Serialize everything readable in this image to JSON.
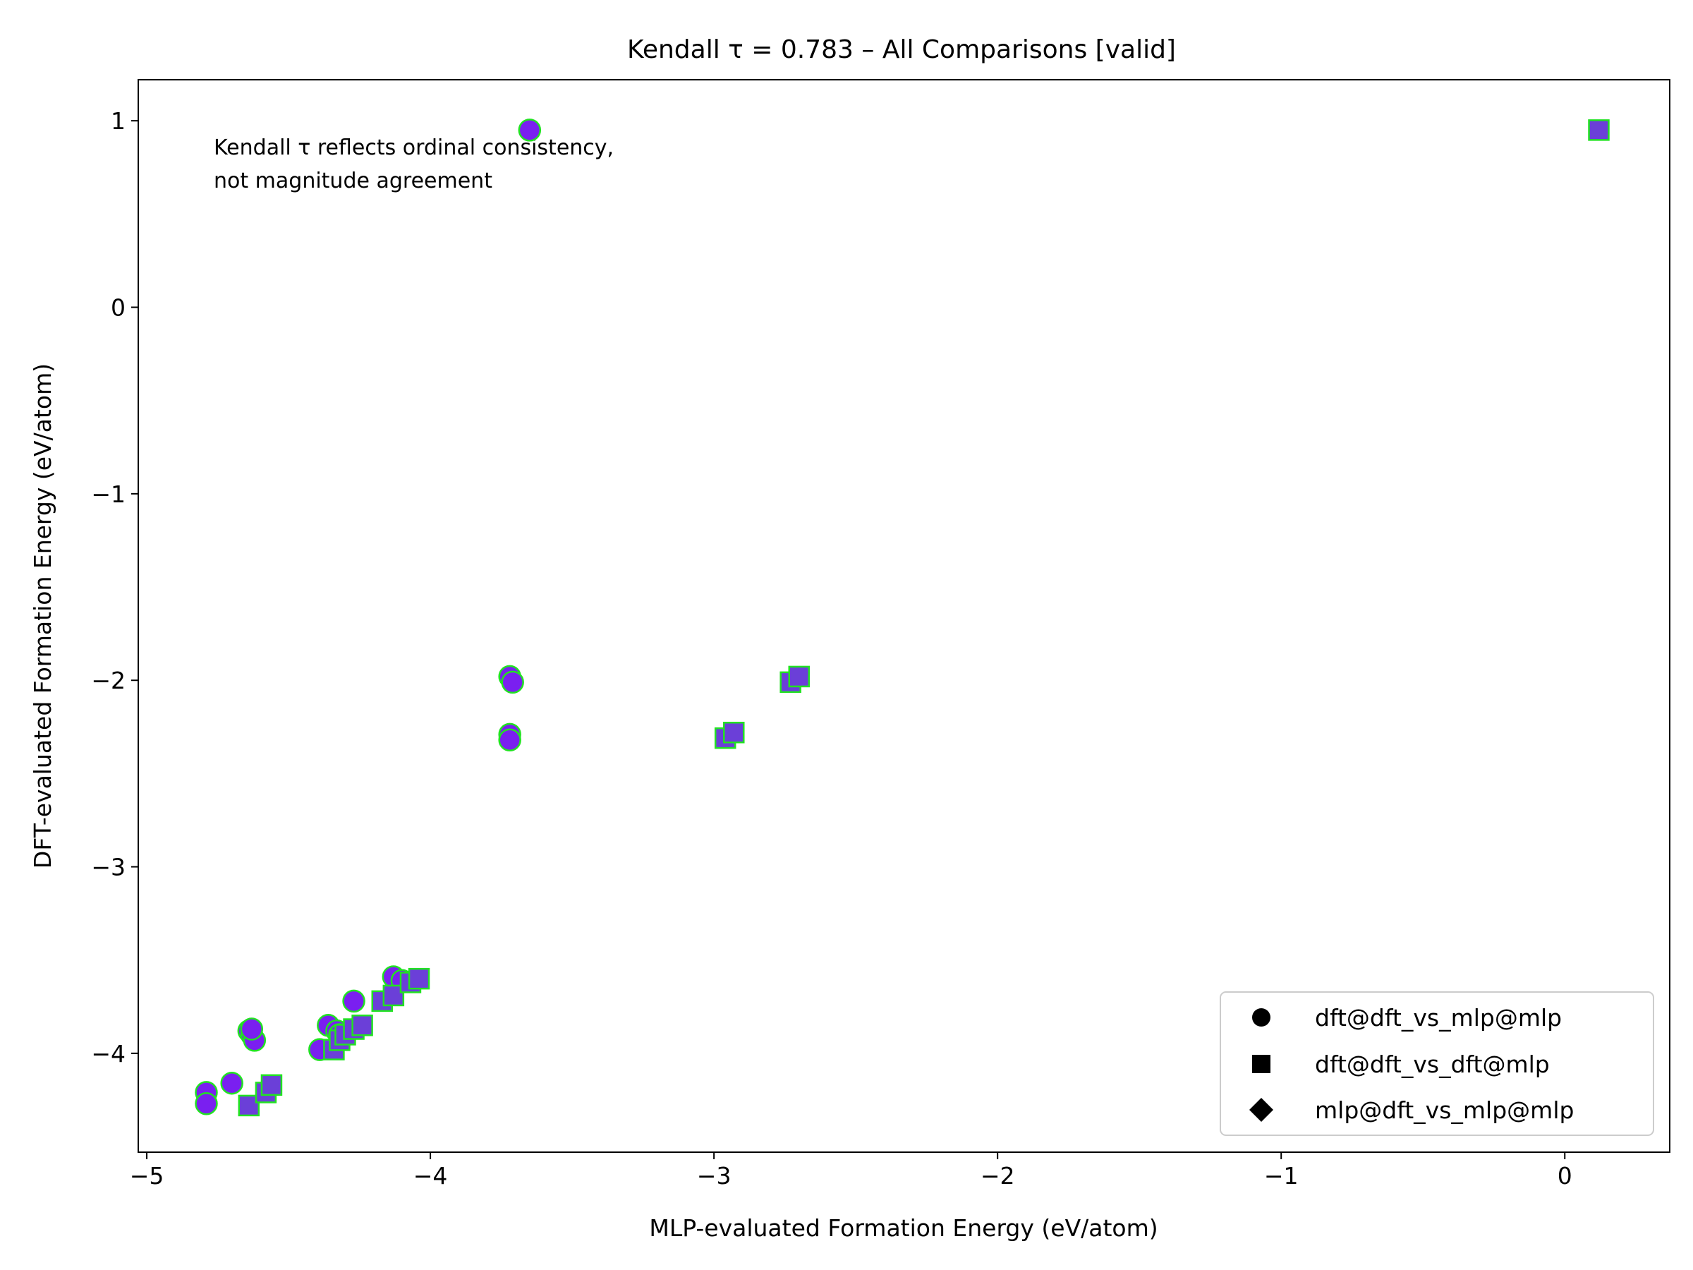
{
  "chart_data": {
    "type": "scatter",
    "title": "Kendall τ = 0.783 – All Comparisons [valid]",
    "xlabel": "MLP-evaluated Formation Energy (eV/atom)",
    "ylabel": "DFT-evaluated Formation Energy (eV/atom)",
    "annotation": [
      "Kendall τ reflects ordinal consistency,",
      "not magnitude agreement"
    ],
    "xlim": [
      -5.03,
      0.37
    ],
    "ylim": [
      -4.53,
      1.22
    ],
    "xticks": [
      -5,
      -4,
      -3,
      -2,
      -1,
      0
    ],
    "yticks": [
      -4,
      -3,
      -2,
      -1,
      0,
      1
    ],
    "xtick_labels": [
      "−5",
      "−4",
      "−3",
      "−2",
      "−1",
      "0"
    ],
    "ytick_labels": [
      "−4",
      "−3",
      "−2",
      "−1",
      "0",
      "1"
    ],
    "grid": false,
    "legend_position": "bottom-right",
    "colors": {
      "marker_fill": "#7a1ff0",
      "square_fill": "#6b3fd8",
      "outer_fill": "#8b2a40",
      "edge": "#22e222"
    },
    "series": [
      {
        "name": "dft@dft_vs_mlp@mlp",
        "marker": "circle",
        "points": [
          [
            -4.79,
            -4.21
          ],
          [
            -4.79,
            -4.27
          ],
          [
            -4.7,
            -4.16
          ],
          [
            -4.64,
            -3.88
          ],
          [
            -4.63,
            -3.9
          ],
          [
            -4.62,
            -3.93
          ],
          [
            -4.63,
            -3.87
          ],
          [
            -4.39,
            -3.98
          ],
          [
            -4.36,
            -3.85
          ],
          [
            -4.33,
            -3.88
          ],
          [
            -4.32,
            -3.9
          ],
          [
            -4.27,
            -3.72
          ],
          [
            -4.13,
            -3.59
          ],
          [
            -4.1,
            -3.61
          ],
          [
            -3.72,
            -1.98
          ],
          [
            -3.71,
            -2.01
          ],
          [
            -3.72,
            -2.29
          ],
          [
            -3.72,
            -2.32
          ],
          [
            -3.65,
            0.95
          ]
        ]
      },
      {
        "name": "dft@dft_vs_dft@mlp",
        "marker": "square",
        "points": [
          [
            -4.64,
            -4.28
          ],
          [
            -4.58,
            -4.21
          ],
          [
            -4.56,
            -4.17
          ],
          [
            -4.34,
            -3.98
          ],
          [
            -4.32,
            -3.93
          ],
          [
            -4.3,
            -3.9
          ],
          [
            -4.27,
            -3.87
          ],
          [
            -4.24,
            -3.85
          ],
          [
            -4.17,
            -3.72
          ],
          [
            -4.13,
            -3.69
          ],
          [
            -4.07,
            -3.62
          ],
          [
            -4.04,
            -3.6
          ],
          [
            -2.96,
            -2.31
          ],
          [
            -2.93,
            -2.28
          ],
          [
            -2.73,
            -2.01
          ],
          [
            -2.7,
            -1.98
          ],
          [
            0.12,
            0.95
          ]
        ]
      },
      {
        "name": "mlp@dft_vs_mlp@mlp",
        "marker": "diamond",
        "points": []
      }
    ]
  }
}
